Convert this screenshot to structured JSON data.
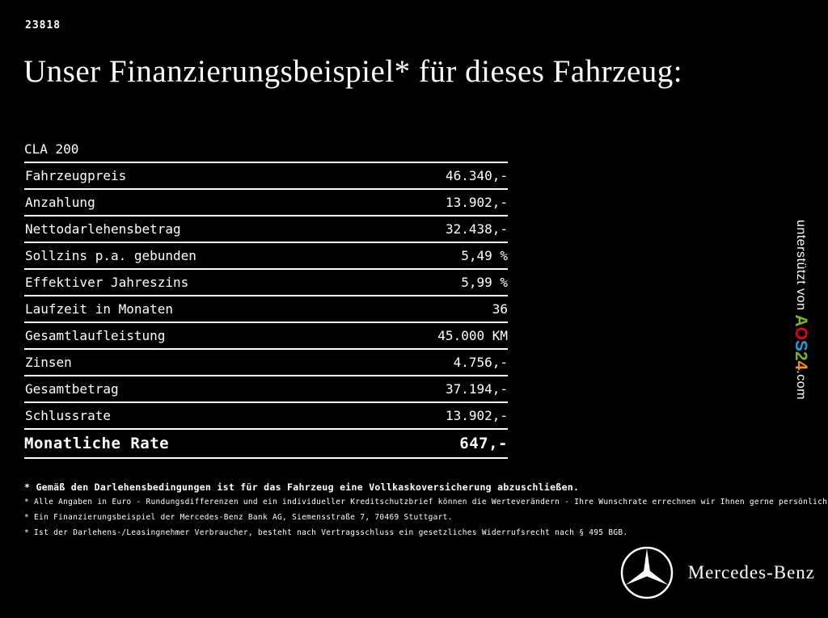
{
  "page": {
    "ref_number": "23818",
    "title": "Unser Finanzierungsbeispiel* für dieses Fahrzeug:"
  },
  "table": {
    "model": "CLA 200",
    "rows": [
      {
        "label": "Fahrzeugpreis",
        "value": "46.340,-"
      },
      {
        "label": "Anzahlung",
        "value": "13.902,-"
      },
      {
        "label": "Nettodarlehensbetrag",
        "value": "32.438,-"
      },
      {
        "label": "Sollzins p.a. gebunden",
        "value": "5,49 %"
      },
      {
        "label": "Effektiver Jahreszins",
        "value": "5,99 %"
      },
      {
        "label": "Laufzeit in Monaten",
        "value": "36"
      },
      {
        "label": "Gesamtlaufleistung",
        "value": "45.000 KM"
      },
      {
        "label": "Zinsen",
        "value": "4.756,-"
      },
      {
        "label": "Gesamtbetrag",
        "value": "37.194,-"
      },
      {
        "label": "Schlussrate",
        "value": "13.902,-"
      }
    ],
    "total_row": {
      "label": "Monatliche Rate",
      "value": "647,-"
    }
  },
  "footnotes": [
    "* Gemäß den Darlehensbedingungen ist für das Fahrzeug eine Vollkaskoversicherung abzuschließen.",
    "* Alle Angaben in Euro - Rundungsdifferenzen und ein individueller Kreditschutzbrief können die Werteverändern - Ihre Wunschrate errechnen wir Ihnen gerne persönlich",
    "* Ein Finanzierungsbeispiel der Mercedes-Benz Bank AG, Siemensstraße 7, 70469 Stuttgart.",
    "* Ist der Darlehens-/Leasingnehmer Verbraucher, besteht nach Vertragsschluss ein gesetzliches Widerrufsrecht nach § 495 BGB."
  ],
  "sidebar": {
    "supported_text": "unterstützt von ",
    "brand_letters": [
      {
        "char": "A",
        "color": "#7ab51d"
      },
      {
        "char": "O",
        "color": "#e2001a"
      },
      {
        "char": "S",
        "color": "#1d9dd9"
      },
      {
        "char": "2",
        "color": "#7ab51d"
      },
      {
        "char": "4",
        "color": "#f39200"
      }
    ],
    "domain_suffix": ".com",
    "text_color": "#ffffff"
  },
  "footer": {
    "brand": "Mercedes-Benz"
  },
  "colors": {
    "background": "#000000",
    "foreground": "#ffffff"
  }
}
